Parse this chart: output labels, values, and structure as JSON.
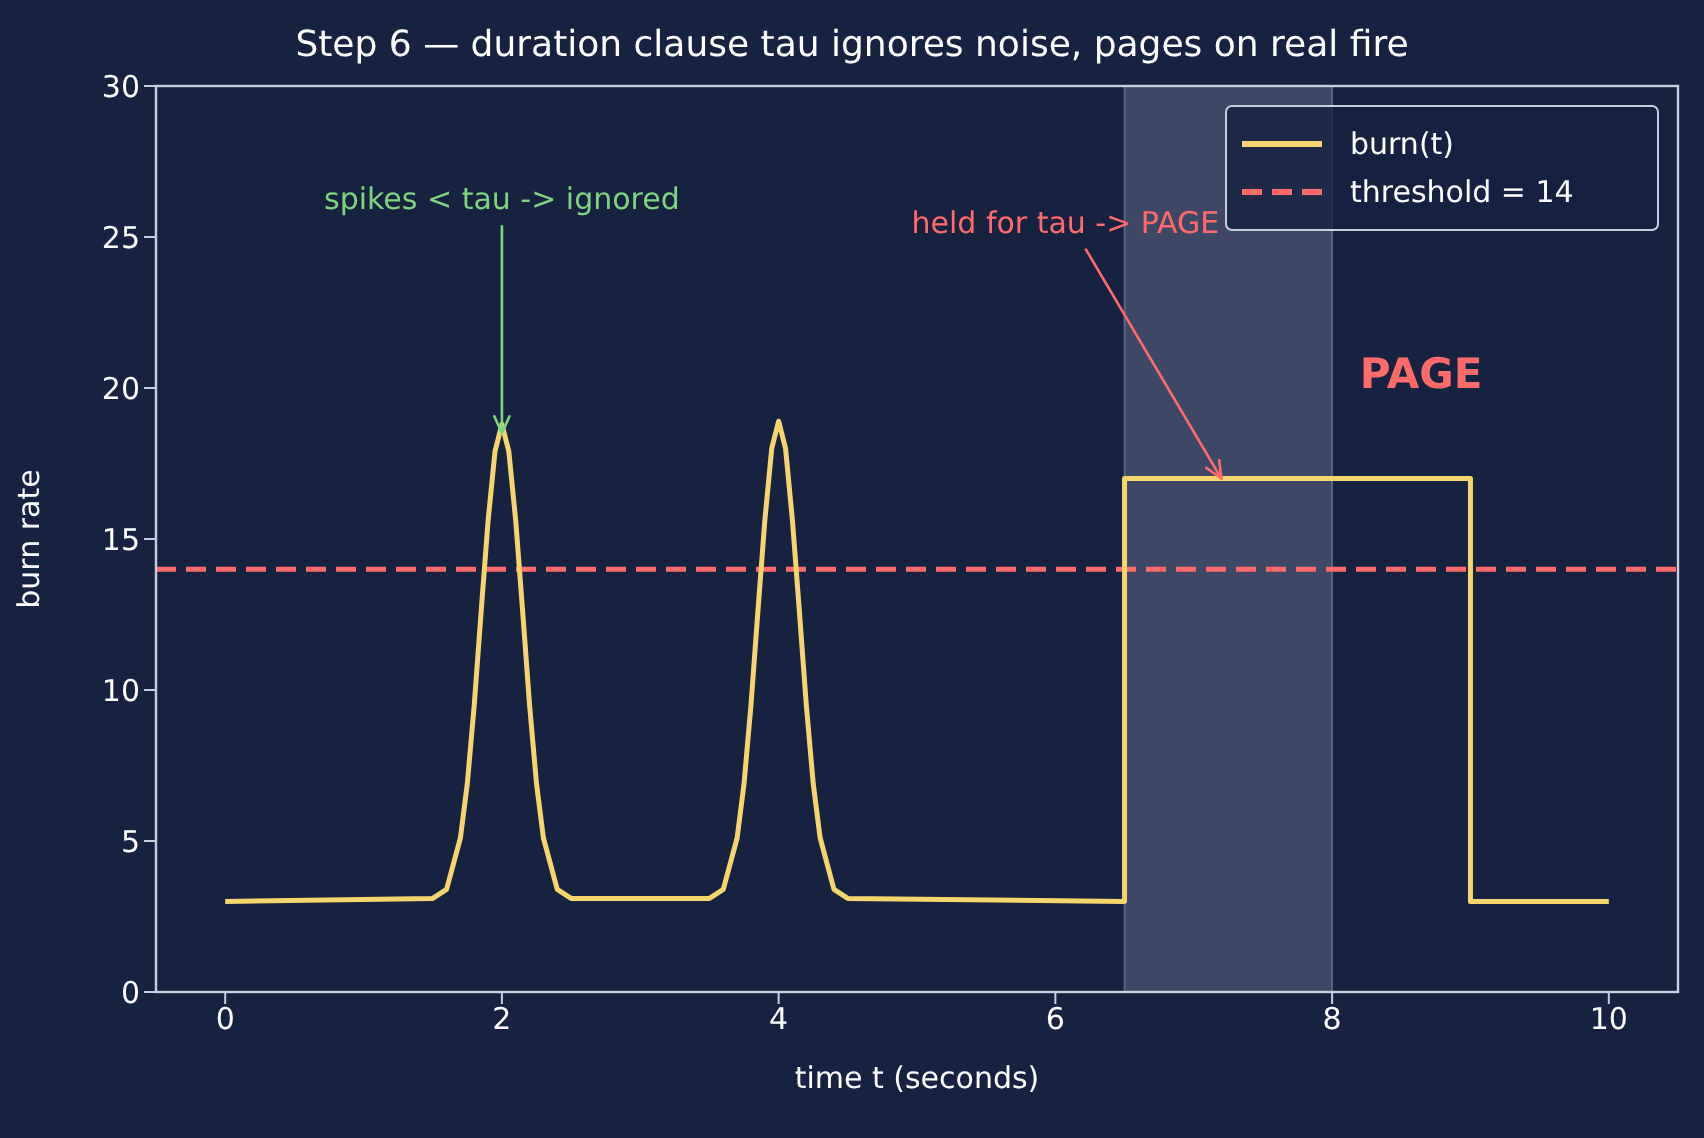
{
  "chart_data": {
    "type": "line",
    "title": "Step 6 — duration clause tau ignores noise, pages on real fire",
    "xlabel": "time t (seconds)",
    "ylabel": "burn rate",
    "xlim": [
      -0.5,
      10.5
    ],
    "xticks": [
      0,
      2,
      4,
      6,
      8,
      10
    ],
    "ylim": [
      0,
      30
    ],
    "yticks": [
      0,
      5,
      10,
      15,
      20,
      25,
      30
    ],
    "legend": "top right",
    "line_style": "solid",
    "marker": "none",
    "series": [
      {
        "name": "burn(t)",
        "color": "#f5d66e",
        "x": [
          0,
          1.5,
          1.6,
          1.7,
          1.75,
          1.8,
          1.85,
          1.9,
          1.95,
          2,
          2.05,
          2.1,
          2.15,
          2.2,
          2.25,
          2.3,
          2.4,
          2.5,
          3.5,
          3.6,
          3.7,
          3.75,
          3.8,
          3.85,
          3.9,
          3.95,
          4,
          4.05,
          4.1,
          4.15,
          4.2,
          4.25,
          4.3,
          4.4,
          4.5,
          6.5,
          6.5,
          9,
          9,
          10
        ],
        "values": [
          3,
          3.1,
          3.4,
          5.1,
          6.9,
          9.5,
          12.6,
          15.6,
          17.9,
          18.8,
          17.9,
          15.6,
          12.6,
          9.5,
          6.9,
          5.1,
          3.4,
          3.1,
          3.1,
          3.4,
          5.1,
          6.9,
          9.5,
          12.6,
          15.6,
          18,
          18.9,
          18,
          15.6,
          12.6,
          9.5,
          6.9,
          5.1,
          3.4,
          3.1,
          3,
          17,
          17,
          3,
          3
        ]
      }
    ],
    "ref_lines": [
      {
        "axis": "y",
        "value": 14,
        "label": "threshold = 14",
        "color": "#ff6b6b",
        "line_style": "dashed"
      }
    ],
    "bands": [
      {
        "axis": "x",
        "from": 6.5,
        "to": 8,
        "color": "#8891b0"
      }
    ],
    "annotations": [
      {
        "text": "spikes < tau -> ignored",
        "x": 2,
        "y": 18.5
      },
      {
        "text": "held for tau -> PAGE",
        "x": 7.2,
        "y": 17
      },
      "PAGE"
    ]
  }
}
